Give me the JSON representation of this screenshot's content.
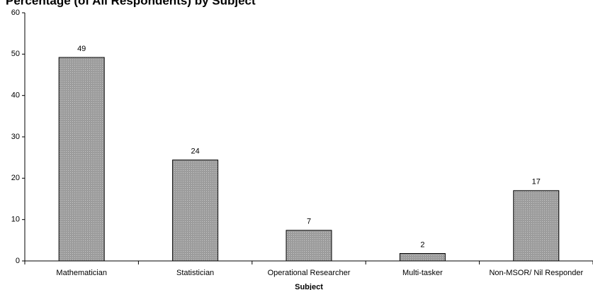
{
  "chart_data": {
    "type": "bar",
    "title": "Percentage (of All Respondents) by Subject",
    "x_label": "Subject",
    "categories": [
      "Mathematician",
      "Statistician",
      "Operational Researcher",
      "Multi-tasker",
      "Non-MSOR/ Nil Responder"
    ],
    "values": [
      49.2,
      24.4,
      7.4,
      1.8,
      17
    ],
    "value_labels": [
      "49",
      "24",
      "7",
      "2",
      "17"
    ],
    "color": "#9c9c9c",
    "ylim": [
      0,
      60
    ],
    "yticks": [
      0,
      10,
      20,
      30,
      40,
      50,
      60
    ],
    "grid": false
  }
}
